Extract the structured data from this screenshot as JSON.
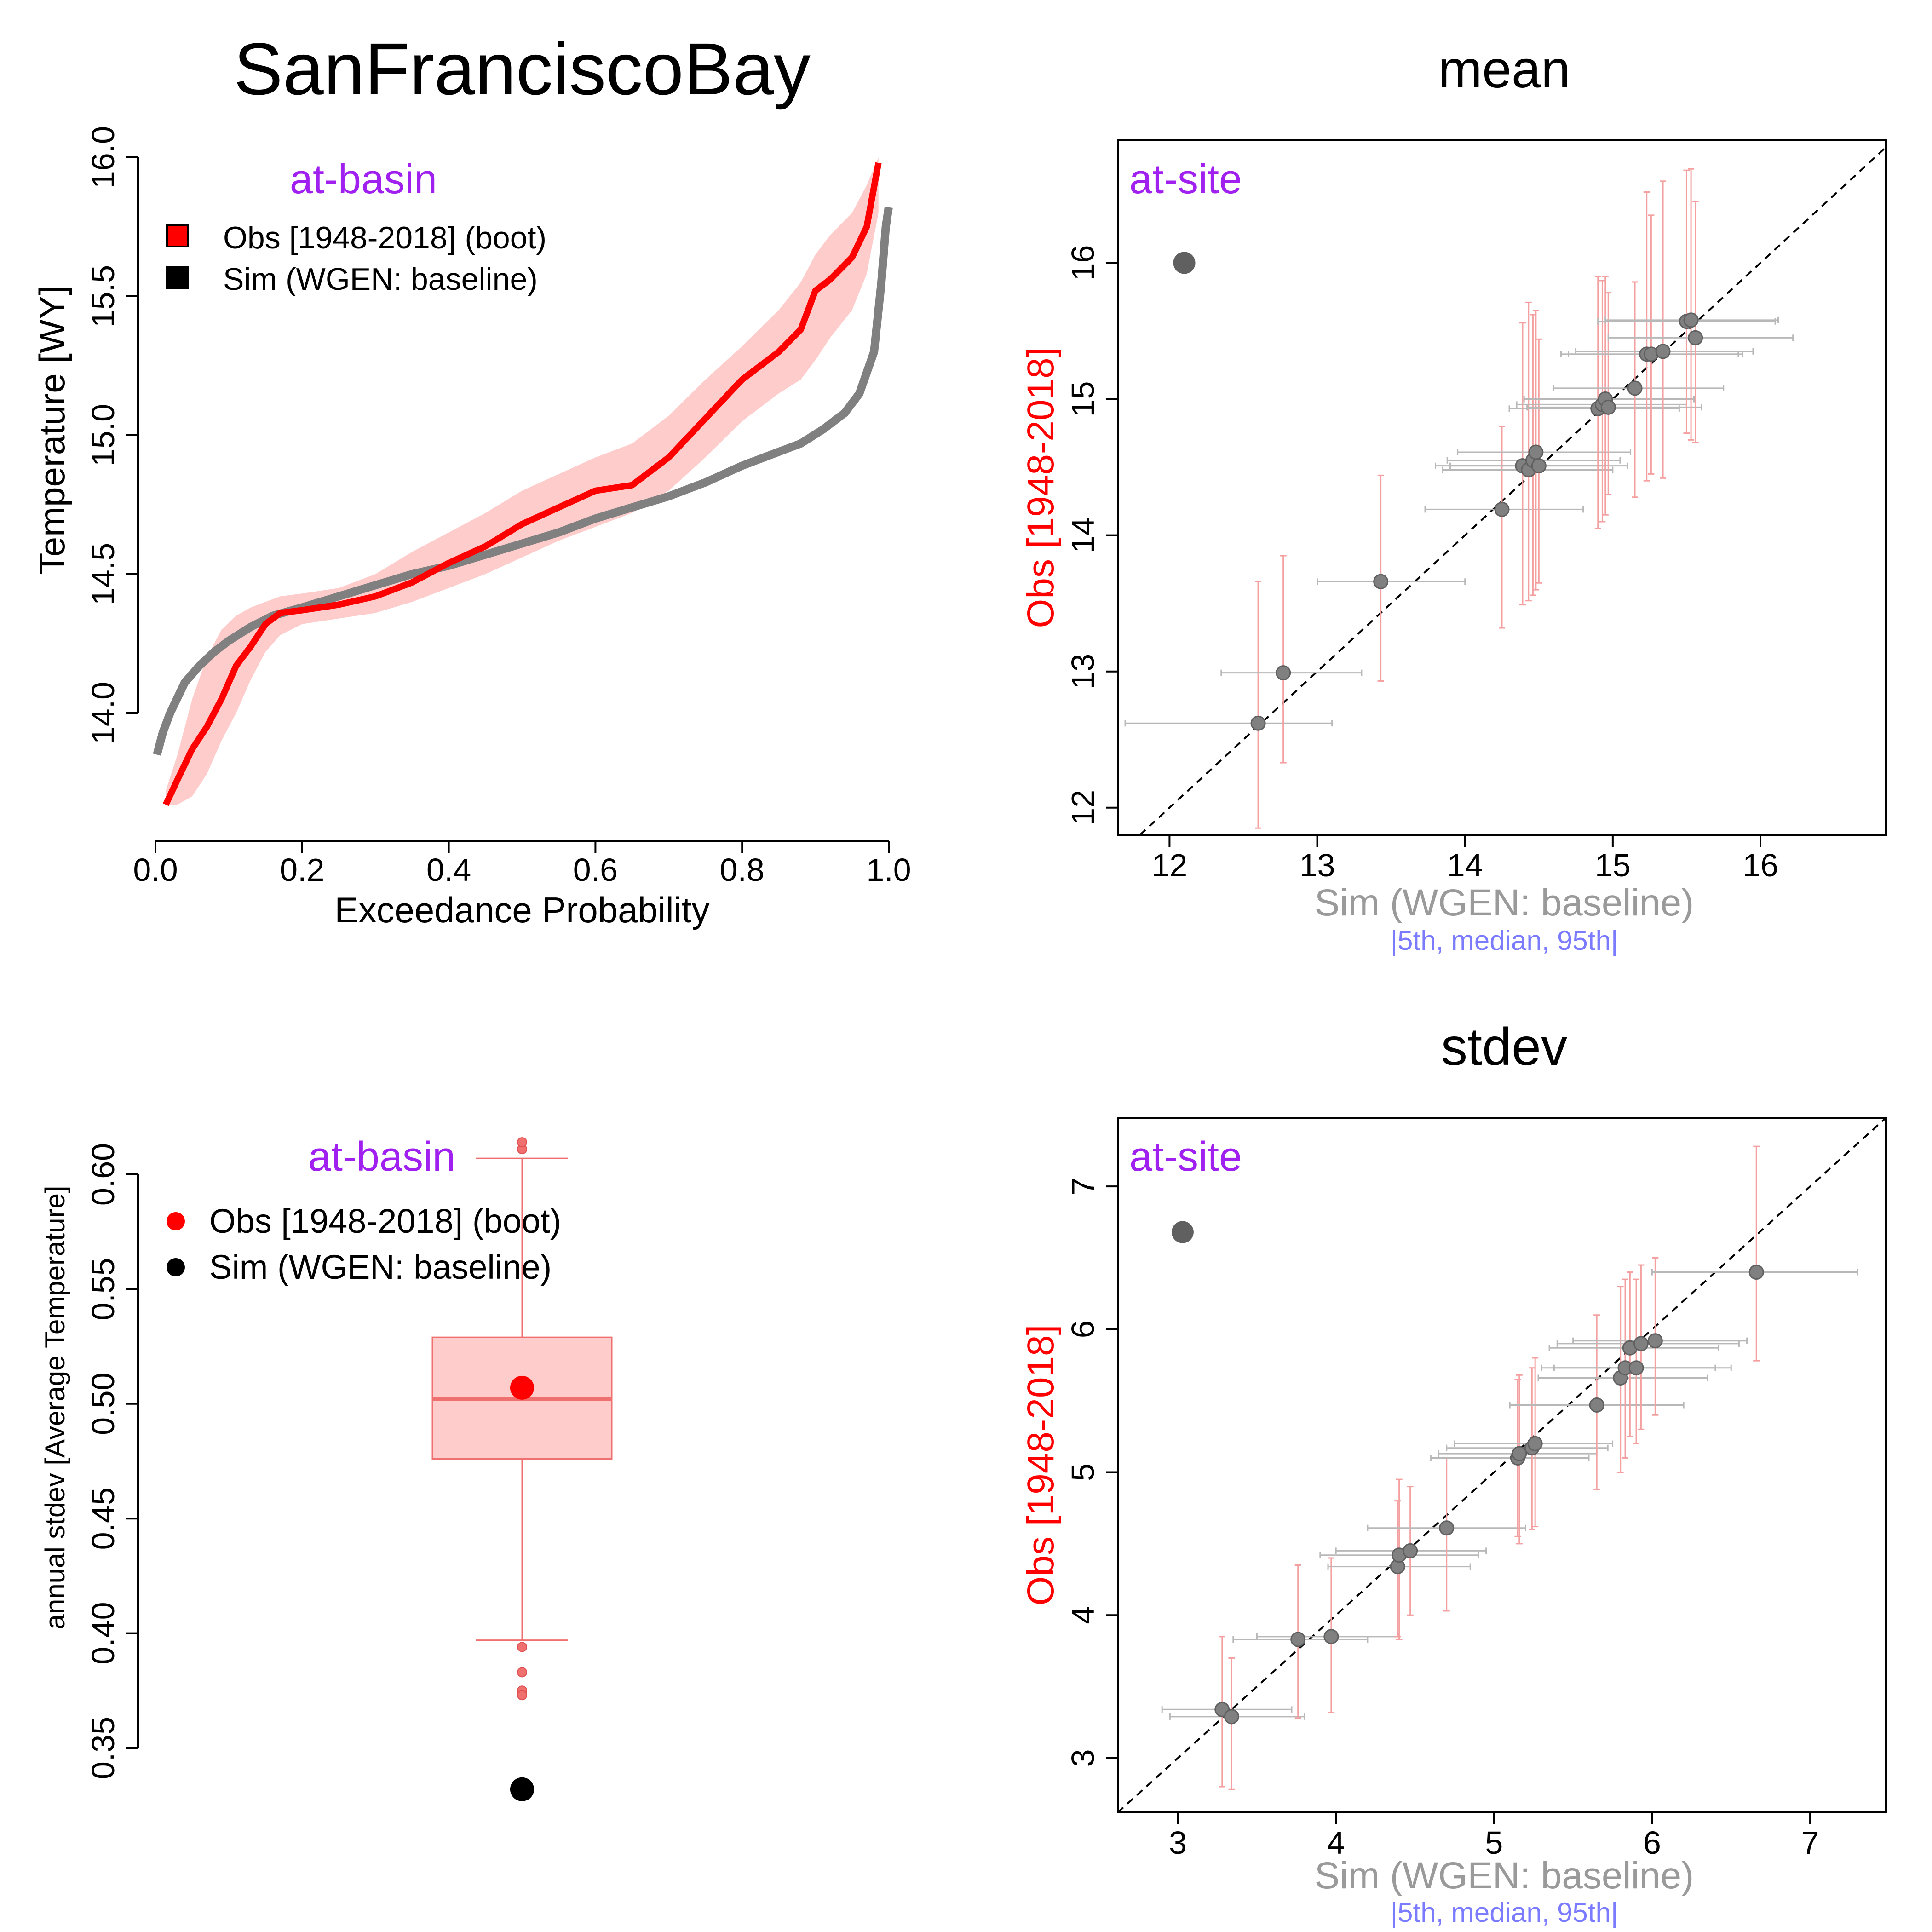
{
  "figure": {
    "title": "SanFranciscoBay",
    "colors": {
      "obs": "#ff0000",
      "obs_band": "#ffcccc",
      "sim": "#808080",
      "sim_point": "#606060",
      "legend_label": "#a020f0",
      "obs_axis_label": "#ff0000",
      "sim_axis_label": "#9a9a9a",
      "percentile_note": "#7b7bff",
      "obs_errorbar": "#f4a0a0",
      "sim_errorbar": "#b8b8b8"
    }
  },
  "chart_data": [
    {
      "id": "fdc",
      "type": "line",
      "xlabel": "Exceedance Probability",
      "ylabel": "Temperature [WY]",
      "xlim": [
        0,
        1
      ],
      "ylim": [
        13.75,
        16.0
      ],
      "xticks": [
        "0.0",
        "0.2",
        "0.4",
        "0.6",
        "0.8",
        "1.0"
      ],
      "yticks": [
        "14.0",
        "14.5",
        "15.0",
        "15.5",
        "16.0"
      ],
      "legend_title": "at-basin",
      "legend_position": "top-left",
      "legend": [
        {
          "label": "Obs [1948-2018] (boot)",
          "color": "#ff0000",
          "marker": "square"
        },
        {
          "label": "Sim (WGEN: baseline)",
          "color": "#000000",
          "marker": "square"
        }
      ],
      "series": [
        {
          "name": "Obs [1948-2018] (boot)",
          "x": [
            0.014,
            0.03,
            0.05,
            0.07,
            0.09,
            0.11,
            0.13,
            0.15,
            0.17,
            0.2,
            0.25,
            0.3,
            0.35,
            0.4,
            0.45,
            0.5,
            0.55,
            0.6,
            0.65,
            0.7,
            0.75,
            0.8,
            0.85,
            0.88,
            0.9,
            0.92,
            0.95,
            0.97,
            0.986
          ],
          "y": [
            13.67,
            13.76,
            13.87,
            13.95,
            14.05,
            14.17,
            14.24,
            14.32,
            14.36,
            14.37,
            14.39,
            14.42,
            14.47,
            14.54,
            14.6,
            14.68,
            14.74,
            14.8,
            14.82,
            14.92,
            15.06,
            15.2,
            15.3,
            15.38,
            15.52,
            15.56,
            15.64,
            15.75,
            15.98
          ]
        },
        {
          "name": "Sim (WGEN: baseline)",
          "x": [
            0.002,
            0.01,
            0.02,
            0.04,
            0.06,
            0.08,
            0.1,
            0.13,
            0.16,
            0.2,
            0.25,
            0.3,
            0.35,
            0.4,
            0.45,
            0.5,
            0.55,
            0.6,
            0.65,
            0.7,
            0.75,
            0.8,
            0.85,
            0.88,
            0.91,
            0.94,
            0.96,
            0.98,
            0.99,
            0.996,
            1.0
          ],
          "y": [
            13.85,
            13.93,
            14.0,
            14.11,
            14.17,
            14.22,
            14.26,
            14.31,
            14.35,
            14.38,
            14.42,
            14.46,
            14.5,
            14.53,
            14.57,
            14.61,
            14.65,
            14.7,
            14.74,
            14.78,
            14.83,
            14.89,
            14.94,
            14.97,
            15.02,
            15.08,
            15.15,
            15.3,
            15.55,
            15.75,
            15.82
          ]
        }
      ],
      "obs_band": {
        "x": [
          0.014,
          0.03,
          0.05,
          0.07,
          0.09,
          0.11,
          0.13,
          0.15,
          0.17,
          0.2,
          0.25,
          0.3,
          0.35,
          0.4,
          0.45,
          0.5,
          0.55,
          0.6,
          0.65,
          0.7,
          0.75,
          0.8,
          0.85,
          0.88,
          0.9,
          0.92,
          0.95,
          0.97,
          0.986
        ],
        "lower": [
          13.67,
          13.67,
          13.7,
          13.78,
          13.9,
          14.0,
          14.12,
          14.22,
          14.28,
          14.32,
          14.34,
          14.36,
          14.4,
          14.45,
          14.5,
          14.56,
          14.62,
          14.67,
          14.72,
          14.8,
          14.92,
          15.05,
          15.15,
          15.2,
          15.27,
          15.35,
          15.45,
          15.58,
          15.8
        ],
        "upper": [
          13.72,
          13.85,
          14.05,
          14.2,
          14.3,
          14.35,
          14.38,
          14.4,
          14.42,
          14.43,
          14.45,
          14.5,
          14.58,
          14.65,
          14.72,
          14.8,
          14.86,
          14.92,
          14.97,
          15.07,
          15.2,
          15.32,
          15.45,
          15.55,
          15.65,
          15.72,
          15.8,
          15.9,
          16.0
        ]
      }
    },
    {
      "id": "mean",
      "type": "scatter",
      "title": "mean",
      "xlabel": "Sim (WGEN: baseline)",
      "xlabel_note": "|5th, median, 95th|",
      "ylabel": "Obs [1948-2018]",
      "xlim": [
        11.65,
        16.85
      ],
      "ylim": [
        11.8,
        16.9
      ],
      "xticks": [
        "12",
        "13",
        "14",
        "15",
        "16"
      ],
      "yticks": [
        "12",
        "13",
        "14",
        "15",
        "16"
      ],
      "legend_title": "at-site",
      "legend_point": {
        "x": 12.1,
        "y": 16.0
      },
      "points": [
        {
          "x": 12.6,
          "y": 12.62,
          "x5": 11.7,
          "x95": 13.1,
          "y5": 11.85,
          "y95": 13.66
        },
        {
          "x": 12.77,
          "y": 12.99,
          "x5": 12.35,
          "x95": 13.3,
          "y5": 12.33,
          "y95": 13.85
        },
        {
          "x": 13.43,
          "y": 13.66,
          "x5": 13.0,
          "x95": 14.0,
          "y5": 12.93,
          "y95": 14.44
        },
        {
          "x": 14.25,
          "y": 14.19,
          "x5": 13.73,
          "x95": 14.8,
          "y5": 13.32,
          "y95": 14.8
        },
        {
          "x": 14.39,
          "y": 14.51,
          "x5": 13.8,
          "x95": 14.95,
          "y5": 13.49,
          "y95": 15.56
        },
        {
          "x": 14.43,
          "y": 14.48,
          "x5": 13.85,
          "x95": 15.0,
          "y5": 13.52,
          "y95": 15.71
        },
        {
          "x": 14.46,
          "y": 14.55,
          "x5": 13.88,
          "x95": 15.05,
          "y5": 13.56,
          "y95": 15.62
        },
        {
          "x": 14.48,
          "y": 14.61,
          "x5": 13.95,
          "x95": 15.12,
          "y5": 13.6,
          "y95": 15.65
        },
        {
          "x": 14.5,
          "y": 14.51,
          "x5": 13.9,
          "x95": 15.1,
          "y5": 13.65,
          "y95": 15.44
        },
        {
          "x": 14.9,
          "y": 14.93,
          "x5": 14.3,
          "x95": 15.45,
          "y5": 14.05,
          "y95": 15.9
        },
        {
          "x": 14.93,
          "y": 14.96,
          "x5": 14.35,
          "x95": 15.5,
          "y5": 14.1,
          "y95": 15.87
        },
        {
          "x": 14.95,
          "y": 15.0,
          "x5": 14.4,
          "x95": 15.55,
          "y5": 14.15,
          "y95": 15.9
        },
        {
          "x": 14.97,
          "y": 14.94,
          "x5": 14.42,
          "x95": 15.6,
          "y5": 14.3,
          "y95": 15.78
        },
        {
          "x": 15.15,
          "y": 15.08,
          "x5": 14.6,
          "x95": 15.75,
          "y5": 14.28,
          "y95": 15.86
        },
        {
          "x": 15.23,
          "y": 15.33,
          "x5": 14.65,
          "x95": 15.85,
          "y5": 14.4,
          "y95": 16.52
        },
        {
          "x": 15.26,
          "y": 15.33,
          "x5": 14.7,
          "x95": 15.88,
          "y5": 14.45,
          "y95": 16.35
        },
        {
          "x": 15.34,
          "y": 15.35,
          "x5": 14.75,
          "x95": 15.95,
          "y5": 14.42,
          "y95": 16.6
        },
        {
          "x": 15.5,
          "y": 15.57,
          "x5": 14.9,
          "x95": 16.1,
          "y5": 14.75,
          "y95": 16.68
        },
        {
          "x": 15.53,
          "y": 15.58,
          "x5": 14.95,
          "x95": 16.12,
          "y5": 14.7,
          "y95": 16.69
        },
        {
          "x": 15.56,
          "y": 15.45,
          "x5": 14.97,
          "x95": 16.22,
          "y5": 14.68,
          "y95": 16.45
        }
      ]
    },
    {
      "id": "box",
      "type": "box",
      "ylabel": "annual stdev [Average Temperature]",
      "ylim": [
        0.35,
        0.6
      ],
      "yticks": [
        "0.35",
        "0.40",
        "0.45",
        "0.50",
        "0.55",
        "0.60"
      ],
      "legend_title": "at-basin",
      "legend_position": "top-left",
      "legend": [
        {
          "label": "Obs [1948-2018] (boot)",
          "color": "#ff0000",
          "marker": "circle"
        },
        {
          "label": "Sim (WGEN: baseline)",
          "color": "#000000",
          "marker": "circle"
        }
      ],
      "box": {
        "whisker_low": 0.397,
        "q1": 0.476,
        "median": 0.502,
        "q3": 0.529,
        "whisker_high": 0.607
      },
      "outliers": [
        0.394,
        0.383,
        0.375,
        0.373,
        0.611,
        0.614
      ],
      "obs_value": 0.507,
      "sim_value": 0.332
    },
    {
      "id": "stdev",
      "type": "scatter",
      "title": "stdev",
      "xlabel": "Sim (WGEN: baseline)",
      "xlabel_note": "|5th, median, 95th|",
      "ylabel": "Obs [1948-2018]",
      "xlim": [
        2.62,
        7.48
      ],
      "ylim": [
        2.62,
        7.48
      ],
      "xticks": [
        "3",
        "4",
        "5",
        "6",
        "7"
      ],
      "yticks": [
        "3",
        "4",
        "5",
        "6",
        "7"
      ],
      "legend_title": "at-site",
      "legend_point": {
        "x": 3.03,
        "y": 6.68
      },
      "points": [
        {
          "x": 3.28,
          "y": 3.34,
          "x5": 2.9,
          "x95": 3.72,
          "y5": 2.8,
          "y95": 3.85
        },
        {
          "x": 3.34,
          "y": 3.29,
          "x5": 2.95,
          "x95": 3.8,
          "y5": 2.78,
          "y95": 3.7
        },
        {
          "x": 3.76,
          "y": 3.83,
          "x5": 3.35,
          "x95": 4.2,
          "y5": 3.28,
          "y95": 4.35
        },
        {
          "x": 3.97,
          "y": 3.85,
          "x5": 3.5,
          "x95": 4.4,
          "y5": 3.32,
          "y95": 4.4
        },
        {
          "x": 4.39,
          "y": 4.34,
          "x5": 3.95,
          "x95": 4.85,
          "y5": 3.85,
          "y95": 4.8
        },
        {
          "x": 4.4,
          "y": 4.42,
          "x5": 3.9,
          "x95": 4.9,
          "y5": 3.83,
          "y95": 4.95
        },
        {
          "x": 4.47,
          "y": 4.45,
          "x5": 4.0,
          "x95": 4.95,
          "y5": 4.0,
          "y95": 4.9
        },
        {
          "x": 4.7,
          "y": 4.61,
          "x5": 4.2,
          "x95": 5.2,
          "y5": 4.03,
          "y95": 5.1
        },
        {
          "x": 5.15,
          "y": 5.1,
          "x5": 4.6,
          "x95": 5.6,
          "y5": 4.55,
          "y95": 5.65
        },
        {
          "x": 5.16,
          "y": 5.13,
          "x5": 4.65,
          "x95": 5.65,
          "y5": 4.5,
          "y95": 5.68
        },
        {
          "x": 5.24,
          "y": 5.17,
          "x5": 4.7,
          "x95": 5.72,
          "y5": 4.6,
          "y95": 5.73
        },
        {
          "x": 5.26,
          "y": 5.2,
          "x5": 4.75,
          "x95": 5.75,
          "y5": 4.62,
          "y95": 5.8
        },
        {
          "x": 5.65,
          "y": 5.47,
          "x5": 5.1,
          "x95": 6.2,
          "y5": 4.88,
          "y95": 6.1
        },
        {
          "x": 5.8,
          "y": 5.66,
          "x5": 5.28,
          "x95": 6.35,
          "y5": 5.0,
          "y95": 6.3
        },
        {
          "x": 5.83,
          "y": 5.73,
          "x5": 5.3,
          "x95": 6.4,
          "y5": 5.1,
          "y95": 6.35
        },
        {
          "x": 5.86,
          "y": 5.87,
          "x5": 5.35,
          "x95": 6.42,
          "y5": 5.25,
          "y95": 6.4
        },
        {
          "x": 5.9,
          "y": 5.73,
          "x5": 5.38,
          "x95": 6.5,
          "y5": 5.2,
          "y95": 6.35
        },
        {
          "x": 5.93,
          "y": 5.9,
          "x5": 5.4,
          "x95": 6.55,
          "y5": 5.3,
          "y95": 6.45
        },
        {
          "x": 6.02,
          "y": 5.92,
          "x5": 5.5,
          "x95": 6.6,
          "y5": 5.4,
          "y95": 6.5
        },
        {
          "x": 6.66,
          "y": 6.4,
          "x5": 6.0,
          "x95": 7.3,
          "y5": 5.78,
          "y95": 7.28
        }
      ]
    }
  ]
}
